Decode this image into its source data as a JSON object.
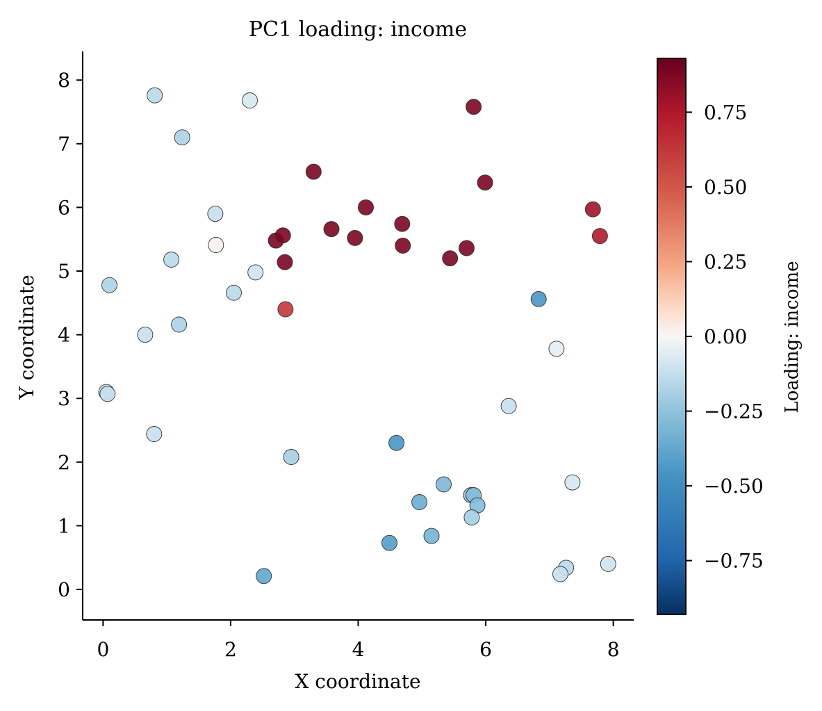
{
  "chart_data": {
    "type": "scatter",
    "title": "PC1 loading: income",
    "xlabel": "X coordinate",
    "ylabel": "Y coordinate",
    "xlim": [
      -0.32,
      8.32
    ],
    "ylim": [
      -0.48,
      8.45
    ],
    "xticks": [
      0,
      2,
      4,
      6,
      8
    ],
    "xtick_labels": [
      "0",
      "2",
      "4",
      "6",
      "8"
    ],
    "yticks": [
      0,
      1,
      2,
      3,
      4,
      5,
      6,
      7,
      8
    ],
    "ytick_labels": [
      "0",
      "1",
      "2",
      "3",
      "4",
      "5",
      "6",
      "7",
      "8"
    ],
    "colorbar": {
      "label": "Loading: income",
      "range": [
        -0.93,
        0.93
      ],
      "ticks": [
        0.75,
        0.5,
        0.25,
        0.0,
        -0.25,
        -0.5,
        -0.75
      ],
      "tick_labels": [
        "0.75",
        "0.50",
        "0.25",
        "0.00",
        "−0.25",
        "−0.50",
        "−0.75"
      ],
      "colormap": "RdBu_r"
    },
    "points": [
      {
        "x": 0.81,
        "y": 7.76,
        "v": -0.15
      },
      {
        "x": 2.3,
        "y": 7.68,
        "v": -0.08
      },
      {
        "x": 1.24,
        "y": 7.1,
        "v": -0.18
      },
      {
        "x": 5.81,
        "y": 7.58,
        "v": 0.88
      },
      {
        "x": 3.3,
        "y": 6.56,
        "v": 0.88
      },
      {
        "x": 5.99,
        "y": 6.39,
        "v": 0.88
      },
      {
        "x": 1.76,
        "y": 5.9,
        "v": -0.12
      },
      {
        "x": 4.12,
        "y": 6.0,
        "v": 0.88
      },
      {
        "x": 7.68,
        "y": 5.97,
        "v": 0.78
      },
      {
        "x": 7.79,
        "y": 5.55,
        "v": 0.74
      },
      {
        "x": 1.77,
        "y": 5.41,
        "v": 0.02
      },
      {
        "x": 2.71,
        "y": 5.48,
        "v": 0.88
      },
      {
        "x": 2.82,
        "y": 5.56,
        "v": 0.88
      },
      {
        "x": 3.58,
        "y": 5.66,
        "v": 0.88
      },
      {
        "x": 3.95,
        "y": 5.52,
        "v": 0.88
      },
      {
        "x": 4.69,
        "y": 5.74,
        "v": 0.88
      },
      {
        "x": 4.7,
        "y": 5.4,
        "v": 0.88
      },
      {
        "x": 5.7,
        "y": 5.36,
        "v": 0.88
      },
      {
        "x": 5.44,
        "y": 5.2,
        "v": 0.88
      },
      {
        "x": 2.85,
        "y": 5.14,
        "v": 0.88
      },
      {
        "x": 1.07,
        "y": 5.18,
        "v": -0.15
      },
      {
        "x": 2.39,
        "y": 4.98,
        "v": -0.1
      },
      {
        "x": 0.1,
        "y": 4.78,
        "v": -0.18
      },
      {
        "x": 2.05,
        "y": 4.66,
        "v": -0.15
      },
      {
        "x": 6.83,
        "y": 4.56,
        "v": -0.45
      },
      {
        "x": 2.86,
        "y": 4.4,
        "v": 0.62
      },
      {
        "x": 1.19,
        "y": 4.16,
        "v": -0.18
      },
      {
        "x": 0.66,
        "y": 4.0,
        "v": -0.12
      },
      {
        "x": 7.11,
        "y": 3.78,
        "v": -0.05
      },
      {
        "x": 0.05,
        "y": 3.1,
        "v": -0.12
      },
      {
        "x": 0.07,
        "y": 3.07,
        "v": -0.12
      },
      {
        "x": 6.36,
        "y": 2.88,
        "v": -0.12
      },
      {
        "x": 0.8,
        "y": 2.44,
        "v": -0.12
      },
      {
        "x": 4.6,
        "y": 2.3,
        "v": -0.45
      },
      {
        "x": 2.95,
        "y": 2.08,
        "v": -0.2
      },
      {
        "x": 7.36,
        "y": 1.68,
        "v": -0.08
      },
      {
        "x": 5.34,
        "y": 1.65,
        "v": -0.3
      },
      {
        "x": 5.77,
        "y": 1.48,
        "v": -0.25
      },
      {
        "x": 5.81,
        "y": 1.48,
        "v": -0.28
      },
      {
        "x": 4.96,
        "y": 1.37,
        "v": -0.35
      },
      {
        "x": 5.87,
        "y": 1.32,
        "v": -0.28
      },
      {
        "x": 5.78,
        "y": 1.13,
        "v": -0.2
      },
      {
        "x": 5.15,
        "y": 0.84,
        "v": -0.32
      },
      {
        "x": 4.49,
        "y": 0.73,
        "v": -0.42
      },
      {
        "x": 7.92,
        "y": 0.4,
        "v": -0.1
      },
      {
        "x": 7.26,
        "y": 0.34,
        "v": -0.15
      },
      {
        "x": 7.17,
        "y": 0.24,
        "v": -0.12
      },
      {
        "x": 2.52,
        "y": 0.21,
        "v": -0.38
      }
    ]
  }
}
